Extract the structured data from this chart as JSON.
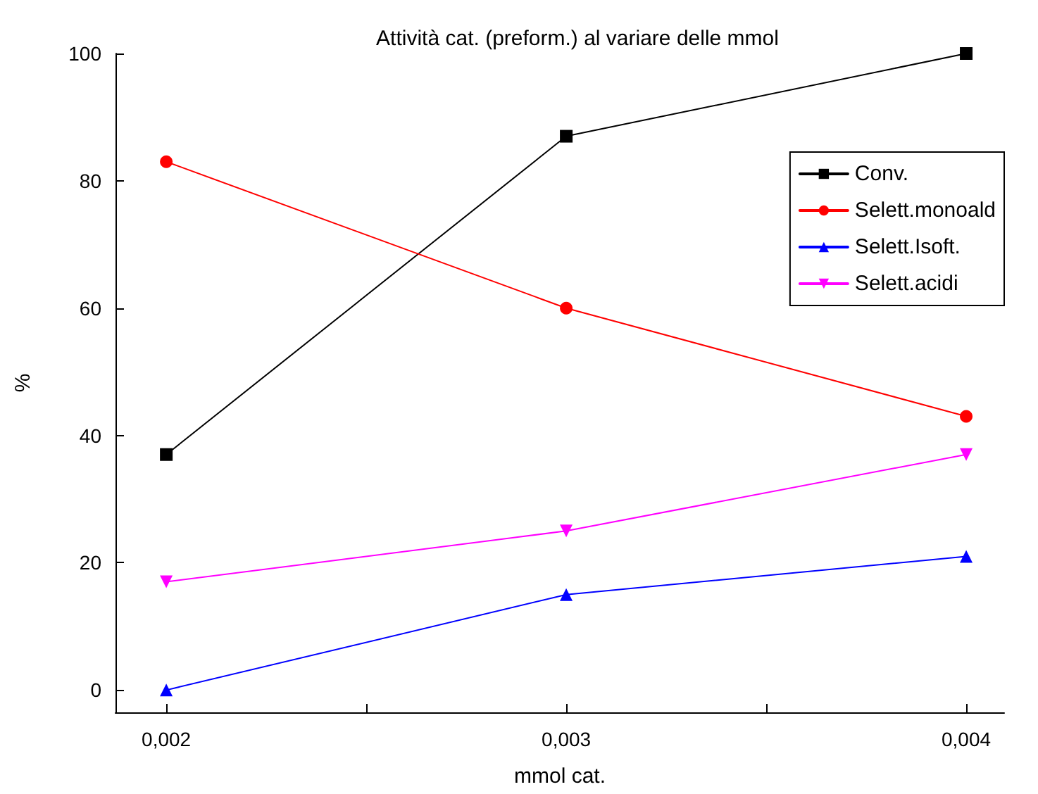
{
  "chart_data": {
    "type": "line",
    "title": "Attività cat. (preform.) al variare delle mmol",
    "xlabel": "mmol cat.",
    "ylabel": "%",
    "x": [
      0.002,
      0.003,
      0.004
    ],
    "series": [
      {
        "name": "Conv.",
        "color": "#000000",
        "marker": "square",
        "values": [
          37,
          87,
          100
        ]
      },
      {
        "name": "Selett.monoald",
        "color": "#ff0000",
        "marker": "circle",
        "values": [
          83,
          60,
          43
        ]
      },
      {
        "name": "Selett.Isoft.",
        "color": "#0000ff",
        "marker": "triangle",
        "values": [
          0,
          15,
          21
        ]
      },
      {
        "name": "Selett.acidi",
        "color": "#ff00ff",
        "marker": "triangle_down",
        "values": [
          17,
          25,
          37
        ]
      }
    ],
    "xlim": [
      0.001873,
      0.004095
    ],
    "xticks": [
      {
        "value": 0.002,
        "label": "0,002"
      },
      {
        "value": 0.0025,
        "label": null
      },
      {
        "value": 0.003,
        "label": "0,003"
      },
      {
        "value": 0.0035,
        "label": null
      },
      {
        "value": 0.004,
        "label": "0,004"
      }
    ],
    "ylim": [
      -3.5,
      100
    ],
    "yticks": [
      0,
      20,
      40,
      60,
      80,
      100
    ],
    "grid": false,
    "legend": "top right",
    "line_style": "solid"
  }
}
